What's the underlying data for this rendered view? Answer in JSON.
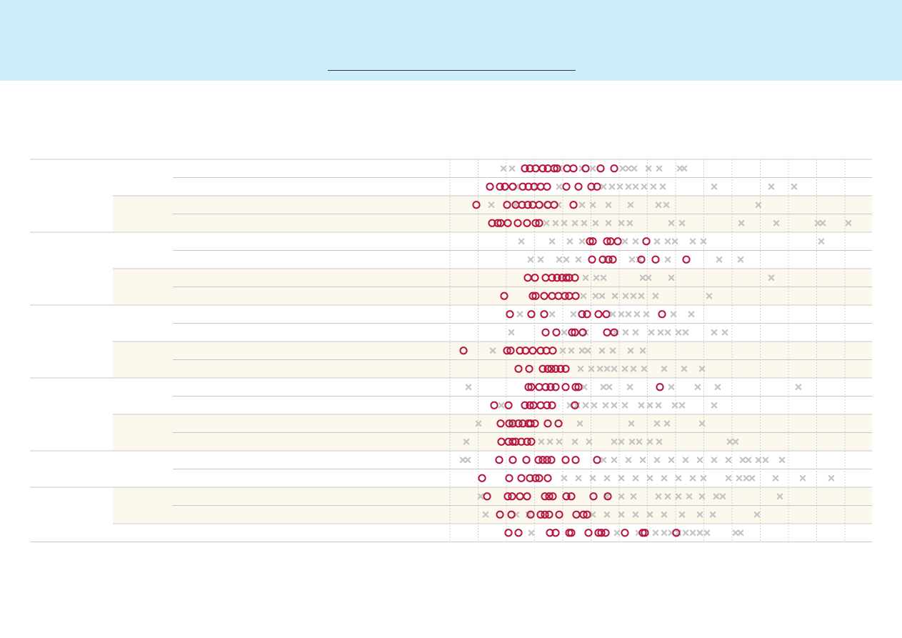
{
  "colors": {
    "header_band": "#cdeefa",
    "highlight_band": "#fdf8ee",
    "cross_marker": "#c4c4c4",
    "circle_marker": "#b5163f",
    "row_separator": "#c8c8c8",
    "grid": "#d0d0d0"
  },
  "chart_data": {
    "type": "scatter",
    "grid": true,
    "rows": [
      {
        "band": false,
        "crosses": [
          705,
          717,
          783,
          815,
          830,
          872,
          880,
          888,
          908,
          923,
          952,
          958
        ],
        "circles": [
          735,
          742,
          750,
          760,
          767,
          776,
          780,
          794,
          803,
          820,
          841,
          860
        ]
      },
      {
        "band": false,
        "crosses": [
          723,
          752,
          783,
          845,
          857,
          868,
          880,
          890,
          902,
          915,
          928,
          1000,
          1080,
          1112
        ],
        "circles": [
          686,
          700,
          707,
          718,
          732,
          740,
          748,
          757,
          766,
          793,
          810,
          828,
          836
        ]
      },
      {
        "band": true,
        "crosses": [
          688,
          722,
          762,
          782,
          815,
          830,
          852,
          883,
          922,
          933,
          1062
        ],
        "circles": [
          667,
          710,
          722,
          731,
          739,
          746,
          755,
          767,
          776,
          803
        ]
      },
      {
        "band": true,
        "crosses": [
          765,
          778,
          790,
          805,
          818,
          834,
          852,
          870,
          882,
          940,
          955,
          1038,
          1087,
          1145,
          1152,
          1188
        ],
        "circles": [
          689,
          697,
          701,
          711,
          725,
          738,
          750,
          755
        ]
      },
      {
        "band": false,
        "crosses": [
          730,
          773,
          798,
          815,
          875,
          890,
          920,
          935,
          945,
          970,
          985,
          1150
        ],
        "circles": [
          826,
          830,
          850,
          855,
          865,
          905
        ]
      },
      {
        "band": false,
        "crosses": [
          743,
          757,
          783,
          793,
          810,
          848,
          885,
          895,
          935,
          1007,
          1037
        ],
        "circles": [
          829,
          844,
          852,
          858,
          898,
          918,
          961
        ]
      },
      {
        "band": true,
        "crosses": [
          820,
          835,
          845,
          900,
          908,
          940,
          1080
        ],
        "circles": [
          739,
          749,
          764,
          773,
          780,
          787,
          793,
          797,
          805
        ]
      },
      {
        "band": true,
        "crosses": [
          817,
          834,
          843,
          861,
          876,
          887,
          898,
          918,
          993
        ],
        "circles": [
          706,
          746,
          750,
          762,
          773,
          782,
          791,
          797,
          806
        ]
      },
      {
        "band": false,
        "crosses": [
          728,
          773,
          803,
          858,
          870,
          880,
          892,
          905,
          943,
          968
        ],
        "circles": [
          714,
          744,
          762,
          815,
          822,
          838,
          849,
          927
        ]
      },
      {
        "band": false,
        "crosses": [
          716,
          790,
          820,
          862,
          876,
          890,
          912,
          925,
          935,
          950,
          960,
          1000,
          1015
        ],
        "circles": [
          764,
          779,
          801,
          805,
          816,
          850,
          860
        ]
      },
      {
        "band": true,
        "crosses": [
          690,
          788,
          800,
          815,
          823,
          843,
          858,
          883,
          900
        ],
        "circles": [
          649,
          710,
          715,
          728,
          736,
          746,
          757,
          765,
          774
        ]
      },
      {
        "band": true,
        "crosses": [
          813,
          828,
          840,
          850,
          860,
          875,
          887,
          902,
          930,
          958,
          983
        ],
        "circles": [
          726,
          741,
          760,
          767,
          772,
          778,
          785,
          792
        ]
      },
      {
        "band": false,
        "crosses": [
          656,
          818,
          845,
          853,
          882,
          940,
          977,
          1005,
          1118
        ],
        "circles": [
          740,
          744,
          755,
          764,
          771,
          778,
          792,
          806,
          810,
          924
        ]
      },
      {
        "band": false,
        "crosses": [
          702,
          798,
          808,
          820,
          832,
          848,
          860,
          875,
          898,
          910,
          922,
          945,
          955,
          1000
        ],
        "circles": [
          692,
          712,
          735,
          742,
          747,
          757,
          766,
          773,
          805
        ]
      },
      {
        "band": true,
        "crosses": [
          670,
          717,
          812,
          884,
          920,
          934,
          983
        ],
        "circles": [
          701,
          713,
          718,
          726,
          732,
          740,
          743,
          749,
          767,
          782
        ]
      },
      {
        "band": true,
        "crosses": [
          653,
          758,
          770,
          783,
          805,
          825,
          860,
          870,
          885,
          895,
          910,
          923,
          1022,
          1030
        ],
        "circles": [
          702,
          712,
          718,
          722,
          730,
          738,
          744
        ]
      },
      {
        "band": false,
        "crosses": [
          648,
          655,
          845,
          860,
          880,
          900,
          920,
          940,
          960,
          980,
          1000,
          1020,
          1040,
          1048,
          1062,
          1072,
          1095
        ],
        "circles": [
          699,
          718,
          737,
          754,
          760,
          766,
          772,
          792,
          806,
          836
        ]
      },
      {
        "band": false,
        "crosses": [
          790,
          810,
          830,
          850,
          870,
          890,
          910,
          930,
          950,
          970,
          985,
          1020,
          1035,
          1045,
          1053,
          1086,
          1124,
          1164
        ],
        "circles": [
          675,
          713,
          730,
          742,
          750,
          755,
          767
        ]
      },
      {
        "band": true,
        "crosses": [
          673,
          850,
          870,
          887,
          922,
          935,
          950,
          965,
          983,
          1003,
          1012,
          1092
        ],
        "circles": [
          682,
          711,
          717,
          728,
          738,
          763,
          769,
          774,
          793,
          800,
          831,
          851
        ]
      },
      {
        "band": true,
        "crosses": [
          680,
          723,
          740,
          830,
          850,
          870,
          890,
          910,
          930,
          955,
          980,
          998,
          1060
        ],
        "circles": [
          700,
          716,
          743,
          757,
          763,
          769,
          783,
          807,
          817,
          822
        ]
      },
      {
        "band": false,
        "crosses": [
          744,
          864,
          894,
          918,
          930,
          940,
          950,
          960,
          970,
          980,
          990,
          1030,
          1037
        ],
        "circles": [
          712,
          726,
          770,
          778,
          797,
          800,
          824,
          838,
          842,
          848,
          875,
          900,
          903,
          947
        ]
      }
    ]
  }
}
